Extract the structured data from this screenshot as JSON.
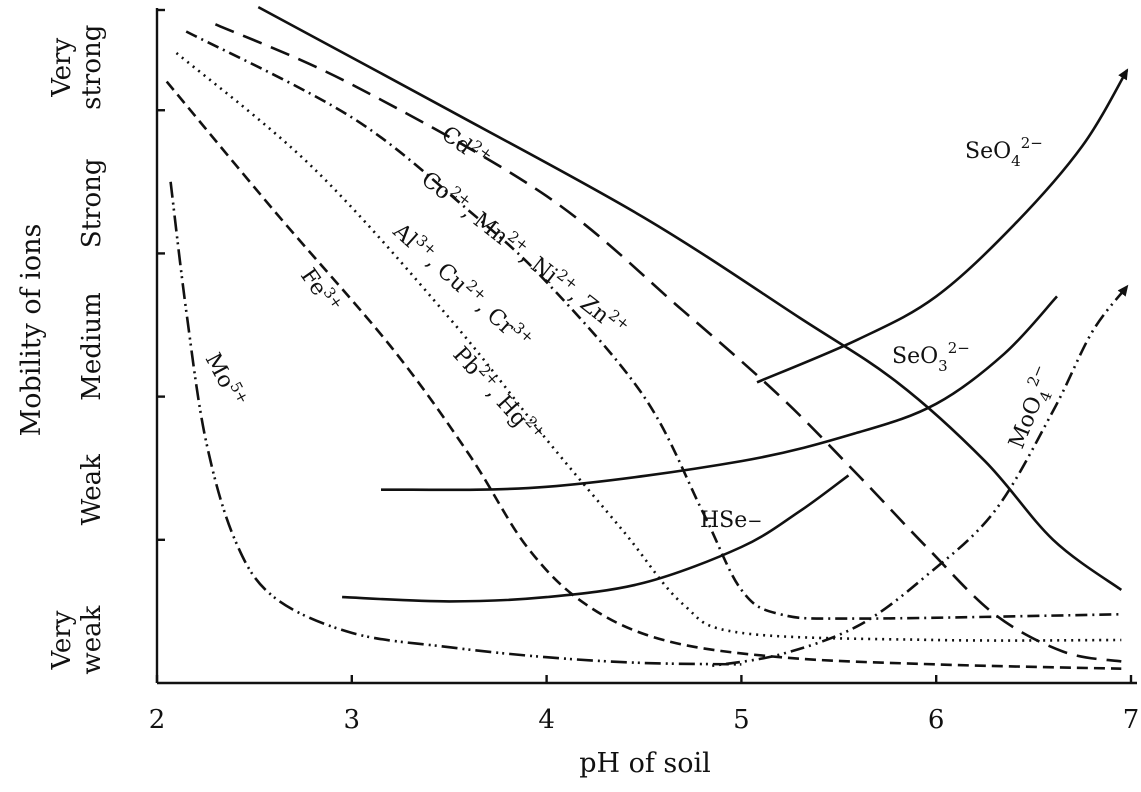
{
  "chart_data": {
    "type": "line",
    "xlabel": "pH of soil",
    "ylabel": "Mobility of ions",
    "xlim": [
      2,
      7
    ],
    "ylim": [
      0,
      4.7
    ],
    "x_ticks": [
      "2",
      "3",
      "4",
      "5",
      "6",
      "7"
    ],
    "y_categories": [
      {
        "lines": [
          "Very",
          "weak"
        ],
        "y": 0.3
      },
      {
        "lines": [
          "Weak"
        ],
        "y": 1.35
      },
      {
        "lines": [
          "Medium"
        ],
        "y": 2.35
      },
      {
        "lines": [
          "Strong"
        ],
        "y": 3.35
      },
      {
        "lines": [
          "Very",
          "strong"
        ],
        "y": 4.3
      }
    ],
    "y_tick_positions": [
      1,
      2,
      3,
      4,
      4.7
    ],
    "series": [
      {
        "id": "cd",
        "label": "Cd2+",
        "dash": "",
        "points": [
          [
            2.52,
            4.72
          ],
          [
            3.5,
            4.0
          ],
          [
            4.5,
            3.25
          ],
          [
            5.3,
            2.55
          ],
          [
            5.8,
            2.1
          ],
          [
            6.25,
            1.55
          ],
          [
            6.6,
            1.0
          ],
          [
            6.95,
            0.65
          ]
        ]
      },
      {
        "id": "co",
        "label": "Co2+, Mn2+, Ni2+, Zn2+",
        "dash": "20,10",
        "points": [
          [
            2.3,
            4.6
          ],
          [
            3.0,
            4.18
          ],
          [
            4.0,
            3.4
          ],
          [
            4.7,
            2.6
          ],
          [
            5.2,
            2.0
          ],
          [
            5.6,
            1.45
          ],
          [
            5.95,
            0.95
          ],
          [
            6.3,
            0.48
          ],
          [
            6.65,
            0.22
          ],
          [
            6.95,
            0.15
          ]
        ]
      },
      {
        "id": "al",
        "label": "Al3+, Cu2+, Cr3+",
        "dash": "12,5,2,5",
        "points": [
          [
            2.15,
            4.55
          ],
          [
            3.0,
            3.95
          ],
          [
            3.6,
            3.3
          ],
          [
            4.0,
            2.8
          ],
          [
            4.5,
            2.0
          ],
          [
            4.8,
            1.2
          ],
          [
            5.0,
            0.65
          ],
          [
            5.2,
            0.48
          ],
          [
            5.6,
            0.45
          ],
          [
            6.95,
            0.48
          ]
        ]
      },
      {
        "id": "pb",
        "label": "Pb2+, Hg2+",
        "dash": "2,5",
        "points": [
          [
            2.1,
            4.4
          ],
          [
            2.8,
            3.6
          ],
          [
            3.5,
            2.55
          ],
          [
            4.0,
            1.7
          ],
          [
            4.4,
            1.05
          ],
          [
            4.7,
            0.55
          ],
          [
            5.0,
            0.35
          ],
          [
            6.0,
            0.3
          ],
          [
            6.95,
            0.3
          ]
        ]
      },
      {
        "id": "fe",
        "label": "Fe3+",
        "dash": "11,6",
        "points": [
          [
            2.05,
            4.2
          ],
          [
            2.6,
            3.3
          ],
          [
            3.2,
            2.35
          ],
          [
            3.6,
            1.6
          ],
          [
            3.9,
            0.95
          ],
          [
            4.2,
            0.55
          ],
          [
            4.6,
            0.3
          ],
          [
            5.2,
            0.18
          ],
          [
            6.0,
            0.13
          ],
          [
            6.95,
            0.1
          ]
        ]
      },
      {
        "id": "mo5",
        "label": "Mo5+",
        "dash": "16,5,2,4,2,5",
        "points": [
          [
            2.07,
            3.5
          ],
          [
            2.15,
            2.6
          ],
          [
            2.25,
            1.7
          ],
          [
            2.4,
            1.0
          ],
          [
            2.6,
            0.6
          ],
          [
            3.0,
            0.35
          ],
          [
            3.5,
            0.25
          ],
          [
            4.0,
            0.18
          ],
          [
            4.5,
            0.14
          ],
          [
            5.0,
            0.13
          ]
        ]
      },
      {
        "id": "moo4",
        "label": "MoO4 2−",
        "dash": "2,5,2,5,14,5",
        "points": [
          [
            4.85,
            0.12
          ],
          [
            5.2,
            0.2
          ],
          [
            5.6,
            0.4
          ],
          [
            5.95,
            0.75
          ],
          [
            6.3,
            1.2
          ],
          [
            6.6,
            1.9
          ],
          [
            6.8,
            2.45
          ],
          [
            6.98,
            2.77
          ]
        ]
      },
      {
        "id": "seo4",
        "label": "SeO4 2−",
        "dash": "",
        "points": [
          [
            5.08,
            2.1
          ],
          [
            5.6,
            2.4
          ],
          [
            6.0,
            2.7
          ],
          [
            6.4,
            3.2
          ],
          [
            6.75,
            3.75
          ],
          [
            6.98,
            4.28
          ]
        ]
      },
      {
        "id": "seo3",
        "label": "SeO3 2−",
        "dash": "",
        "points": [
          [
            3.15,
            1.35
          ],
          [
            4.0,
            1.37
          ],
          [
            5.0,
            1.55
          ],
          [
            5.6,
            1.75
          ],
          [
            6.0,
            1.95
          ],
          [
            6.35,
            2.3
          ],
          [
            6.62,
            2.7
          ]
        ]
      },
      {
        "id": "hse",
        "label": "HSe−",
        "dash": "",
        "points": [
          [
            2.95,
            0.6
          ],
          [
            3.5,
            0.57
          ],
          [
            4.0,
            0.6
          ],
          [
            4.5,
            0.7
          ],
          [
            5.0,
            0.95
          ],
          [
            5.3,
            1.2
          ],
          [
            5.55,
            1.45
          ]
        ]
      }
    ]
  }
}
